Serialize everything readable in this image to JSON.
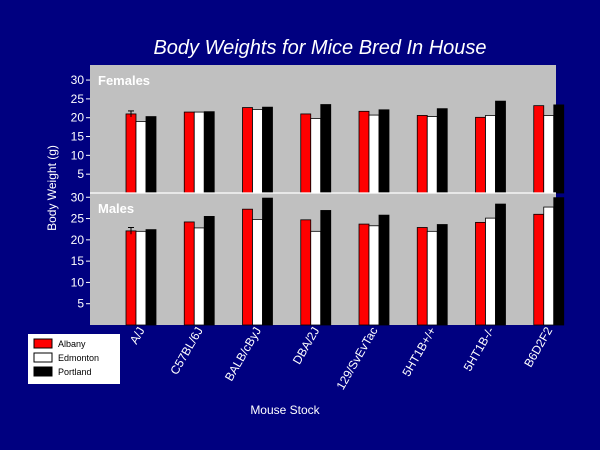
{
  "title": "Body Weights for Mice Bred In House",
  "ylabel": "Body Weight (g)",
  "xlabel": "Mouse Stock",
  "colors": {
    "background": "#000080",
    "panel": "#c0c0c0",
    "text": "#ffffff"
  },
  "legend": {
    "position": "bottom-left",
    "items": [
      {
        "name": "Albany",
        "color": "#ff0000"
      },
      {
        "name": "Edmonton",
        "color": "#ffffff"
      },
      {
        "name": "Portland",
        "color": "#000000"
      }
    ]
  },
  "chart_data": [
    {
      "type": "bar",
      "panel_label": "Females",
      "categories": [
        "A/J",
        "C57BL/6J",
        "BALB/cByJ",
        "DBA/2J",
        "129/SvEvTac",
        "5HT1B+/+",
        "5HT1B-/-",
        "B6D2F2"
      ],
      "ylim": [
        0,
        34
      ],
      "yticks": [
        5,
        10,
        15,
        20,
        25,
        30
      ],
      "grid": false,
      "series": [
        {
          "name": "Albany",
          "values": [
            21,
            21.5,
            22.7,
            21,
            21.7,
            20.6,
            20.1,
            23.2
          ],
          "errors": [
            0.8,
            0,
            0,
            0,
            0,
            0,
            0,
            0
          ]
        },
        {
          "name": "Edmonton",
          "values": [
            19,
            21.5,
            22.2,
            19.8,
            20.7,
            20.3,
            20.6,
            20.6
          ],
          "errors": [
            0,
            0,
            0,
            0,
            0,
            0,
            0,
            0
          ]
        },
        {
          "name": "Portland",
          "values": [
            20.3,
            21.6,
            22.8,
            23.5,
            22.1,
            22.4,
            24.4,
            23.4
          ],
          "errors": [
            0,
            0,
            0,
            0,
            0,
            0,
            0,
            0
          ]
        }
      ]
    },
    {
      "type": "bar",
      "panel_label": "Males",
      "categories": [
        "A/J",
        "C57BL/6J",
        "BALB/cByJ",
        "DBA/2J",
        "129/SvEvTac",
        "5HT1B+/+",
        "5HT1B-/-",
        "B6D2F2"
      ],
      "ylim": [
        0,
        31
      ],
      "yticks": [
        5,
        10,
        15,
        20,
        25,
        30
      ],
      "grid": false,
      "series": [
        {
          "name": "Albany",
          "values": [
            22.1,
            24.2,
            27.2,
            24.7,
            23.7,
            22.9,
            24.1,
            26
          ],
          "errors": [
            0.8,
            0,
            0,
            0,
            0,
            0,
            0,
            0
          ]
        },
        {
          "name": "Edmonton",
          "values": [
            22,
            22.8,
            24.8,
            22,
            23.3,
            22,
            25.1,
            27.7
          ],
          "errors": [
            0,
            0,
            0,
            0,
            0,
            0,
            0,
            0
          ]
        },
        {
          "name": "Portland",
          "values": [
            22.4,
            25.5,
            29.8,
            26.9,
            25.8,
            23.6,
            28.4,
            29.9
          ],
          "errors": [
            0,
            0,
            0,
            0,
            0,
            0,
            0,
            0
          ]
        }
      ]
    }
  ]
}
